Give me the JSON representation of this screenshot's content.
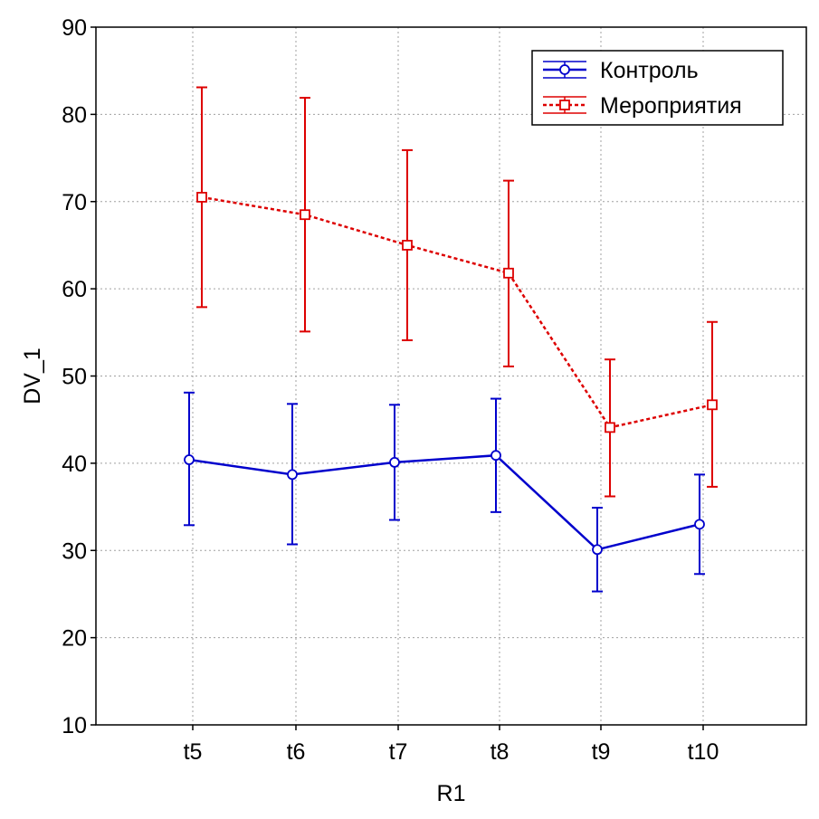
{
  "chart_data": {
    "type": "line",
    "xlabel": "R1",
    "ylabel": "DV_1",
    "categories": [
      "t5",
      "t6",
      "t7",
      "t8",
      "t9",
      "t10"
    ],
    "ylim": [
      10,
      90
    ],
    "yticks": [
      10,
      20,
      30,
      40,
      50,
      60,
      70,
      80,
      90
    ],
    "grid": true,
    "legend_position": "top-right",
    "series": [
      {
        "name": "Контроль",
        "color": "#0000cc",
        "line_style": "solid",
        "marker": "circle",
        "values": [
          40.4,
          38.7,
          40.1,
          40.9,
          30.1,
          33.0
        ],
        "error_low": [
          32.9,
          30.7,
          33.5,
          34.4,
          25.3,
          27.3
        ],
        "error_high": [
          48.1,
          46.8,
          46.7,
          47.4,
          34.9,
          38.7
        ]
      },
      {
        "name": "Мероприятия",
        "color": "#dd0000",
        "line_style": "dotted",
        "marker": "square",
        "values": [
          70.5,
          68.5,
          65.0,
          61.8,
          44.1,
          46.7
        ],
        "error_low": [
          57.9,
          55.1,
          54.1,
          51.1,
          36.2,
          37.3
        ],
        "error_high": [
          83.1,
          81.9,
          75.9,
          72.4,
          51.9,
          56.2
        ]
      }
    ]
  }
}
